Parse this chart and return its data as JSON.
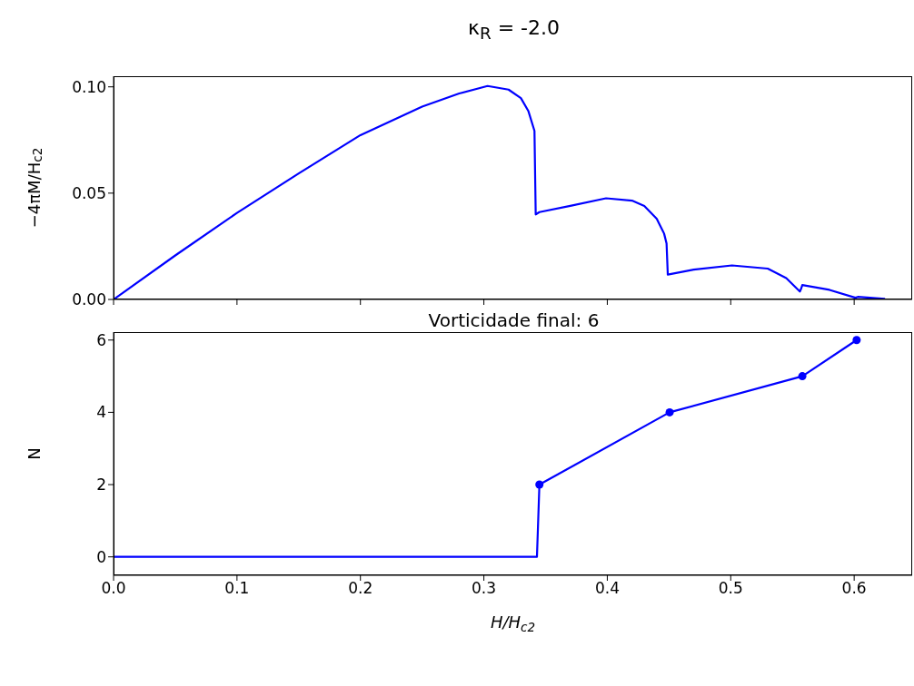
{
  "chart_data": [
    {
      "type": "line",
      "title": "κ$_{R}$ = -2.0",
      "ylabel": "−4πM/H$_{c2}$",
      "x": [
        0,
        0.05,
        0.1,
        0.15,
        0.2,
        0.25,
        0.28,
        0.303,
        0.32,
        0.33,
        0.336,
        0.341,
        0.342,
        0.345,
        0.37,
        0.399,
        0.42,
        0.43,
        0.44,
        0.446,
        0.448,
        0.449,
        0.47,
        0.501,
        0.53,
        0.545,
        0.556,
        0.557,
        0.558,
        0.58,
        0.601,
        0.603,
        0.625
      ],
      "series": [
        {
          "color": "#0000ff",
          "values": [
            0,
            0.0207,
            0.0407,
            0.0593,
            0.0773,
            0.0907,
            0.0969,
            0.1004,
            0.0987,
            0.0947,
            0.0887,
            0.0793,
            0.04,
            0.0411,
            0.044,
            0.0476,
            0.0465,
            0.044,
            0.038,
            0.031,
            0.0264,
            0.0117,
            0.014,
            0.016,
            0.0145,
            0.01,
            0.0037,
            0.005,
            0.0068,
            0.0045,
            0.0008,
            0.0012,
            0.0003
          ]
        }
      ],
      "xlim": [
        0,
        0.647
      ],
      "ylim": [
        0,
        0.105
      ],
      "xticks": [
        {
          "value": 0,
          "label": null
        },
        {
          "value": 0.1,
          "label": null
        },
        {
          "value": 0.2,
          "label": null
        },
        {
          "value": 0.3,
          "label": null
        },
        {
          "value": 0.4,
          "label": null
        },
        {
          "value": 0.5,
          "label": null
        },
        {
          "value": 0.6,
          "label": null
        }
      ],
      "yticks": [
        {
          "value": 0,
          "label": "0.00"
        },
        {
          "value": 0.05,
          "label": "0.05"
        },
        {
          "value": 0.1,
          "label": "0.10"
        }
      ],
      "tick_labels": "y",
      "grid": false,
      "marker": "none",
      "line_style": "solid"
    },
    {
      "type": "line",
      "title": "Vorticidade final: 6",
      "xlabel": "H/H$_{c2}$",
      "ylabel": "N",
      "series": [
        {
          "color": "#0000ff",
          "x": [
            0,
            0.343,
            0.345,
            0.4505,
            0.558,
            0.602
          ],
          "values": [
            0,
            0,
            2,
            4,
            5,
            6
          ]
        },
        {
          "type": "scatter",
          "marker": "circle",
          "color": "#0000ff",
          "x": [
            0.345,
            0.4505,
            0.558,
            0.602
          ],
          "values": [
            2,
            4,
            5,
            6
          ]
        }
      ],
      "xlim": [
        0,
        0.647
      ],
      "ylim": [
        -0.51,
        6.22
      ],
      "xticks": [
        {
          "value": 0,
          "label": "0.0"
        },
        {
          "value": 0.1,
          "label": "0.1"
        },
        {
          "value": 0.2,
          "label": "0.2"
        },
        {
          "value": 0.3,
          "label": "0.3"
        },
        {
          "value": 0.4,
          "label": "0.4"
        },
        {
          "value": 0.5,
          "label": "0.5"
        },
        {
          "value": 0.6,
          "label": "0.6"
        }
      ],
      "yticks": [
        0,
        2,
        4,
        6
      ],
      "grid": false,
      "line_style": "solid"
    }
  ]
}
